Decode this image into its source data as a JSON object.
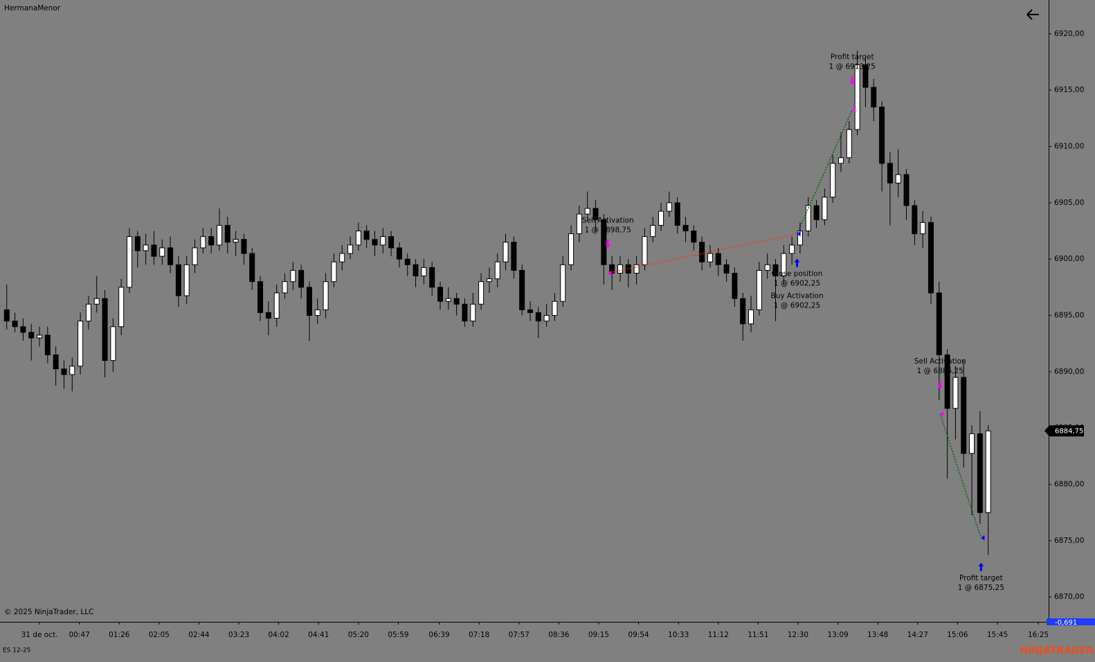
{
  "chart_data": {
    "type": "candlestick",
    "title": "HermanaMenor",
    "instrument": "ES 12-25",
    "copyright": "© 2025 NinjaTrader, LLC",
    "watermark": "NINJATRADER",
    "last_price_label": "6884,75",
    "pnl_label": "-0,691",
    "up_color": "#ffffff",
    "down_color": "#000000",
    "wick_color": "#000000",
    "sell_color": "#ff00ff",
    "buy_color": "#0000ff",
    "win_color": "#006400",
    "loss_color": "#ff3030",
    "xlim": [
      -30.6,
      995.1
    ],
    "xticks": [
      {
        "value": 8,
        "label": "31 de oct."
      },
      {
        "value": 47,
        "label": "00:47"
      },
      {
        "value": 86,
        "label": "01:26"
      },
      {
        "value": 125,
        "label": "02:05"
      },
      {
        "value": 164,
        "label": "02:44"
      },
      {
        "value": 203,
        "label": "03:23"
      },
      {
        "value": 242,
        "label": "04:02"
      },
      {
        "value": 281,
        "label": "04:41"
      },
      {
        "value": 320,
        "label": "05:20"
      },
      {
        "value": 359,
        "label": "05:59"
      },
      {
        "value": 399,
        "label": "06:39"
      },
      {
        "value": 438,
        "label": "07:18"
      },
      {
        "value": 477,
        "label": "07:57"
      },
      {
        "value": 516,
        "label": "08:36"
      },
      {
        "value": 555,
        "label": "09:15"
      },
      {
        "value": 594,
        "label": "09:54"
      },
      {
        "value": 633,
        "label": "10:33"
      },
      {
        "value": 672,
        "label": "11:12"
      },
      {
        "value": 711,
        "label": "11:51"
      },
      {
        "value": 750,
        "label": "12:30"
      },
      {
        "value": 789,
        "label": "13:09"
      },
      {
        "value": 828,
        "label": "13:48"
      },
      {
        "value": 867,
        "label": "14:27"
      },
      {
        "value": 906,
        "label": "15:06"
      },
      {
        "value": 945,
        "label": "15:45"
      },
      {
        "value": 985,
        "label": "16:25"
      }
    ],
    "ylim": [
      6867.8,
      6923.0
    ],
    "yticks": [
      {
        "value": 6870,
        "label": "6870,00"
      },
      {
        "value": 6875,
        "label": "6875,00"
      },
      {
        "value": 6880,
        "label": "6880,00"
      },
      {
        "value": 6885,
        "label": "6885,00"
      },
      {
        "value": 6890,
        "label": "6890,00"
      },
      {
        "value": 6895,
        "label": "6895,00"
      },
      {
        "value": 6900,
        "label": "6900,00"
      },
      {
        "value": 6905,
        "label": "6905,00"
      },
      {
        "value": 6910,
        "label": "6910,00"
      },
      {
        "value": 6915,
        "label": "6915,00"
      },
      {
        "value": 6920,
        "label": "6920,00"
      }
    ],
    "x": [
      -24,
      -16,
      -8,
      0,
      8,
      16,
      24,
      32,
      40,
      48,
      56,
      64,
      72,
      80,
      88,
      96,
      104,
      112,
      120,
      128,
      136,
      144,
      152,
      160,
      168,
      176,
      184,
      192,
      200,
      208,
      216,
      224,
      232,
      240,
      248,
      256,
      264,
      272,
      280,
      288,
      296,
      304,
      312,
      320,
      328,
      336,
      344,
      352,
      360,
      368,
      376,
      384,
      392,
      400,
      408,
      416,
      424,
      432,
      440,
      448,
      456,
      464,
      472,
      480,
      488,
      496,
      504,
      512,
      520,
      528,
      536,
      544,
      552,
      560,
      568,
      576,
      584,
      592,
      600,
      608,
      616,
      624,
      632,
      640,
      648,
      656,
      664,
      672,
      680,
      688,
      696,
      704,
      712,
      720,
      728,
      736,
      744,
      752,
      760,
      768,
      776,
      784,
      792,
      800,
      808,
      816,
      824,
      832,
      840,
      848,
      856,
      864,
      872,
      880,
      888,
      896,
      904,
      912,
      920,
      928,
      936
    ],
    "open": [
      6895.5,
      6894.5,
      6894,
      6893.5,
      6893,
      6893.25,
      6891.5,
      6890.25,
      6889.75,
      6890.5,
      6894.5,
      6896,
      6896.5,
      6891,
      6894,
      6897.5,
      6902,
      6900.75,
      6901.25,
      6900.25,
      6901,
      6899.5,
      6896.75,
      6899.5,
      6901,
      6902,
      6901.25,
      6903,
      6901.5,
      6901.75,
      6900.5,
      6898,
      6895.25,
      6894.75,
      6897,
      6898,
      6899,
      6897.5,
      6895,
      6895.5,
      6898,
      6899.75,
      6900.5,
      6901.25,
      6902.5,
      6901.75,
      6901.25,
      6902,
      6901,
      6900,
      6899.5,
      6898.5,
      6899.25,
      6897.5,
      6896.25,
      6896.5,
      6896,
      6894.5,
      6896,
      6898,
      6898.25,
      6899.75,
      6901.5,
      6899,
      6895.5,
      6895.25,
      6894.5,
      6895,
      6896.25,
      6899.5,
      6902.25,
      6904,
      6904.5,
      6903.5,
      6899.5,
      6898.75,
      6899.5,
      6898.75,
      6899.5,
      6902,
      6903,
      6904.25,
      6905,
      6903,
      6902.5,
      6901.5,
      6899.75,
      6900.5,
      6899.5,
      6898.75,
      6896.5,
      6894.25,
      6895.5,
      6899,
      6899.5,
      6898.5,
      6900.5,
      6901.25,
      6902.5,
      6904.75,
      6903.5,
      6905.5,
      6908.5,
      6909,
      6911.5,
      6917.25,
      6915.25,
      6913.5,
      6908.5,
      6906.75,
      6907.5,
      6904.75,
      6902.25,
      6903.25,
      6897,
      6891.5,
      6886.75,
      6889.5,
      6882.75,
      6884.5,
      6877.5
    ],
    "high": [
      6897.75,
      6895.25,
      6894.75,
      6894.25,
      6894,
      6894,
      6892.25,
      6891,
      6891.25,
      6895.25,
      6896.75,
      6898.5,
      6897.25,
      6894.75,
      6898.25,
      6902.75,
      6902.5,
      6902.25,
      6902.5,
      6901.75,
      6902,
      6900.25,
      6900.25,
      6901.75,
      6902.75,
      6902.75,
      6904.5,
      6903.75,
      6902.5,
      6902.25,
      6901,
      6898.5,
      6896.25,
      6897.75,
      6898.75,
      6899.75,
      6899.5,
      6898,
      6896.5,
      6898.75,
      6900.5,
      6901.25,
      6902,
      6903.25,
      6903,
      6902.5,
      6902.75,
      6902.5,
      6901.5,
      6900.5,
      6900,
      6900,
      6899.75,
      6898,
      6897.5,
      6897,
      6896.5,
      6897,
      6898.75,
      6899.25,
      6900.5,
      6902.25,
      6902,
      6899.5,
      6896.25,
      6895.75,
      6896,
      6897,
      6900.25,
      6903,
      6904.75,
      6906,
      6905.25,
      6904,
      6900.25,
      6900.25,
      6900,
      6900.25,
      6902.75,
      6903.75,
      6905,
      6906,
      6905.5,
      6903.75,
      6903,
      6902,
      6901.25,
      6901,
      6900,
      6899.25,
      6897,
      6896.75,
      6899.75,
      6900.5,
      6900,
      6901.25,
      6902,
      6903.25,
      6905.5,
      6905.25,
      6906.25,
      6909.25,
      6911.25,
      6912.25,
      6918.5,
      6918,
      6916,
      6914,
      6909.5,
      6909.75,
      6908,
      6905.25,
      6904.25,
      6903.75,
      6898,
      6892,
      6890.5,
      6891,
      6885.25,
      6886.5,
      6885.25
    ],
    "low": [
      6893.75,
      6893.5,
      6892.75,
      6891,
      6892.25,
      6890.75,
      6888.75,
      6888.5,
      6888.25,
      6889.75,
      6893.75,
      6895.25,
      6889.5,
      6890,
      6893.25,
      6897,
      6899.25,
      6899.5,
      6899.5,
      6899.5,
      6898.75,
      6895.75,
      6896,
      6898.75,
      6900.5,
      6900.5,
      6900.75,
      6900.5,
      6900.25,
      6899.5,
      6897.25,
      6894.5,
      6893.25,
      6894,
      6896.5,
      6897.25,
      6896.5,
      6892.75,
      6894.25,
      6894.75,
      6897.5,
      6899,
      6900,
      6900.75,
      6901,
      6900.25,
      6900.5,
      6900.25,
      6899.25,
      6898.5,
      6897.5,
      6897.75,
      6896.75,
      6895.5,
      6895.5,
      6895,
      6894,
      6894,
      6895.5,
      6897,
      6897.5,
      6899,
      6898.25,
      6895,
      6894.5,
      6893,
      6894,
      6894.5,
      6895.75,
      6899,
      6901.5,
      6903.5,
      6902.5,
      6897.75,
      6897.25,
      6898,
      6897.5,
      6897.75,
      6899,
      6901.5,
      6902.5,
      6903.75,
      6902.25,
      6901.5,
      6900.75,
      6899,
      6899.25,
      6898.5,
      6898,
      6895.75,
      6892.75,
      6893.5,
      6895,
      6898.25,
      6894.5,
      6897.75,
      6899.5,
      6900.5,
      6902,
      6902.75,
      6903,
      6905,
      6907.75,
      6908.5,
      6911,
      6913.5,
      6912.25,
      6906,
      6903,
      6905.5,
      6903.5,
      6901.25,
      6901,
      6896,
      6887.5,
      6880.5,
      6884,
      6881.5,
      6877.25,
      6876.5,
      6873.75
    ],
    "close": [
      6894.5,
      6894,
      6893.5,
      6893,
      6893.25,
      6891.5,
      6890.25,
      6889.75,
      6890.5,
      6894.5,
      6896,
      6896.5,
      6891,
      6894,
      6897.5,
      6902,
      6900.75,
      6901.25,
      6900.25,
      6901,
      6899.5,
      6896.75,
      6899.5,
      6901,
      6902,
      6901.25,
      6903,
      6901.5,
      6901.75,
      6900.5,
      6898,
      6895.25,
      6894.75,
      6897,
      6898,
      6899,
      6897.5,
      6895,
      6895.5,
      6898,
      6899.75,
      6900.5,
      6901.25,
      6902.5,
      6901.75,
      6901.25,
      6902,
      6901,
      6900,
      6899.5,
      6898.5,
      6899.25,
      6897.5,
      6896.25,
      6896.5,
      6896,
      6894.5,
      6896,
      6898,
      6898.25,
      6899.75,
      6901.5,
      6899,
      6895.5,
      6895.25,
      6894.5,
      6895,
      6896.25,
      6899.5,
      6902.25,
      6904,
      6904.5,
      6903.5,
      6899.5,
      6898.75,
      6899.5,
      6898.75,
      6899.5,
      6902,
      6903,
      6904.25,
      6905,
      6903,
      6902.5,
      6901.5,
      6899.75,
      6900.5,
      6899.5,
      6898.75,
      6896.5,
      6894.25,
      6895.5,
      6899,
      6899.5,
      6898.5,
      6900.5,
      6901.25,
      6902.5,
      6904.75,
      6903.5,
      6905.5,
      6908.5,
      6909,
      6911.5,
      6917.25,
      6915.25,
      6913.5,
      6908.5,
      6906.75,
      6907.5,
      6904.75,
      6902.25,
      6903.25,
      6897,
      6891.5,
      6886.75,
      6889.5,
      6882.75,
      6884.5,
      6877.5,
      6884.75
    ],
    "annotations": [
      {
        "label": "Sell Activation",
        "detail": "1 @ 6898,75",
        "x": 564,
        "price": 6898.75,
        "side": "sell"
      },
      {
        "label": "Close position",
        "detail": "1 @ 6902,25",
        "x": 749,
        "price": 6902.25,
        "side": "buy"
      },
      {
        "label": "Buy Activation",
        "detail": "1 @ 6902,25",
        "x": 749,
        "price": 6902.25,
        "side": "buy"
      },
      {
        "label": "Profit target",
        "detail": "1 @ 6913,25",
        "x": 803,
        "price": 6913.25,
        "side": "sell"
      },
      {
        "label": "Sell Activation",
        "detail": "1 @ 6886,25",
        "x": 889,
        "price": 6886.25,
        "side": "sell"
      },
      {
        "label": "Profit target",
        "detail": "1 @ 6875,25",
        "x": 929,
        "price": 6875.25,
        "side": "buy"
      }
    ]
  }
}
